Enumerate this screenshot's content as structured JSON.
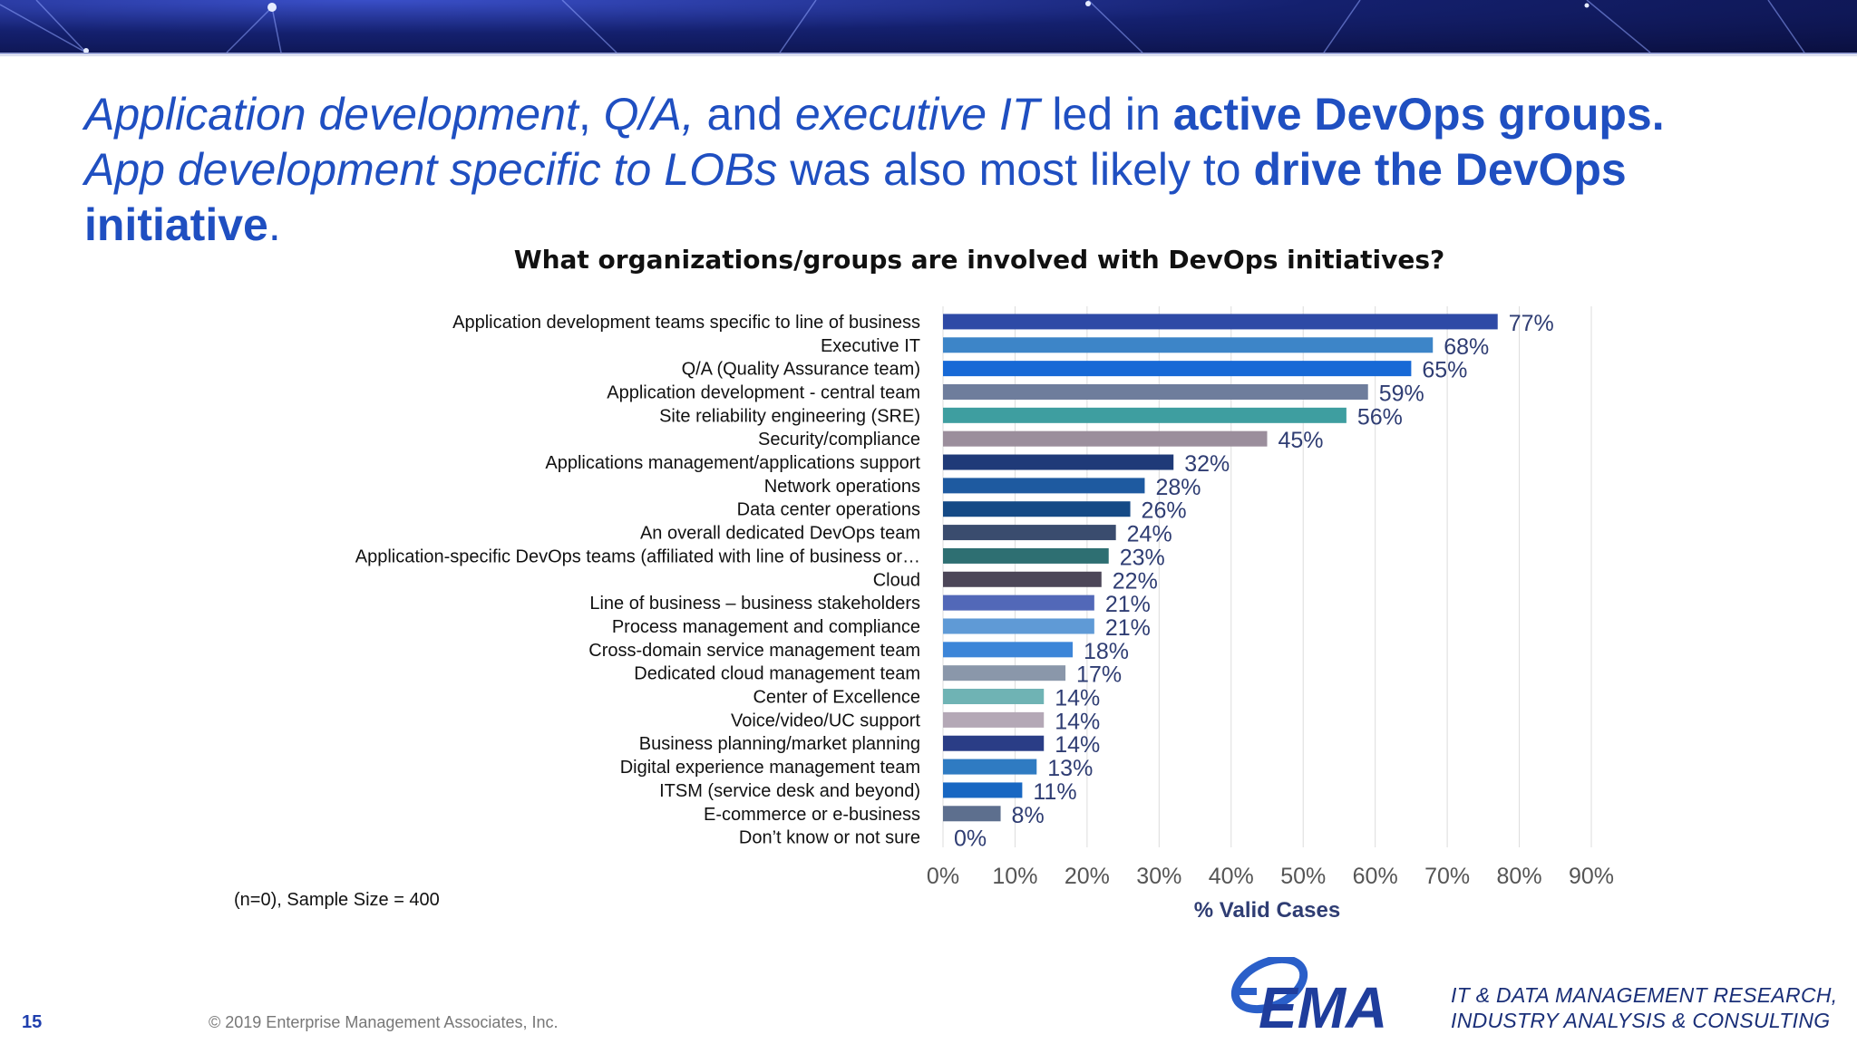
{
  "headline": {
    "p1": "Application development",
    "p2": ", ",
    "p3": "Q/A,",
    "p4": " and ",
    "p5": "executive IT",
    "p6": " led in ",
    "p7": "active DevOps groups.",
    "p8": "App development specific to LOBs",
    "p9": " was also most likely to ",
    "p10": "drive the DevOps initiative",
    "p11": "."
  },
  "chart_data": {
    "type": "bar",
    "orientation": "horizontal",
    "title": "What organizations/groups are involved with DevOps initiatives?",
    "xlabel": "% Valid Cases",
    "xlim": [
      0,
      90
    ],
    "xticks": [
      "0%",
      "10%",
      "20%",
      "30%",
      "40%",
      "50%",
      "60%",
      "70%",
      "80%",
      "90%"
    ],
    "grid": "vertical",
    "categories": [
      "Application development teams specific to line of business",
      "Executive IT",
      "Q/A (Quality Assurance team)",
      "Application development - central team",
      "Site reliability engineering (SRE)",
      "Security/compliance",
      "Applications management/applications support",
      "Network operations",
      "Data center operations",
      "An overall dedicated DevOps team",
      "Application-specific DevOps teams (affiliated with line of business or…",
      "Cloud",
      "Line of business – business stakeholders",
      "Process management and compliance",
      "Cross-domain service management team",
      "Dedicated cloud management team",
      "Center of Excellence",
      "Voice/video/UC support",
      "Business planning/market planning",
      "Digital experience management team",
      "ITSM (service desk and beyond)",
      "E-commerce or e-business",
      "Don’t know or not sure"
    ],
    "values": [
      77,
      68,
      65,
      59,
      56,
      45,
      32,
      28,
      26,
      24,
      23,
      22,
      21,
      21,
      18,
      17,
      14,
      14,
      14,
      13,
      11,
      8,
      0
    ],
    "value_labels": [
      "77%",
      "68%",
      "65%",
      "59%",
      "56%",
      "45%",
      "32%",
      "28%",
      "26%",
      "24%",
      "23%",
      "22%",
      "21%",
      "21%",
      "18%",
      "17%",
      "14%",
      "14%",
      "14%",
      "13%",
      "11%",
      "8%",
      "0%"
    ],
    "colors": [
      "#2e4aa6",
      "#3d85c8",
      "#1769d6",
      "#6e7d9c",
      "#3e9ea0",
      "#9b8e9c",
      "#1f3a78",
      "#1e5aa0",
      "#154a86",
      "#3a4c6e",
      "#2e6f72",
      "#4c4658",
      "#5268b8",
      "#5f9ad6",
      "#3c85d8",
      "#8a97aa",
      "#6fb3b4",
      "#b4a8b6",
      "#2a3d86",
      "#2f7bc2",
      "#1867c2",
      "#5d6f8e",
      "#4f6880"
    ]
  },
  "footnote": "(n=0), Sample Size = 400",
  "footer": {
    "page_number": "15",
    "copyright": "© 2019 Enterprise Management Associates, Inc.",
    "logo_text": "EMA",
    "tagline_line1": "IT & DATA MANAGEMENT RESEARCH,",
    "tagline_line2": "INDUSTRY ANALYSIS & CONSULTING"
  }
}
